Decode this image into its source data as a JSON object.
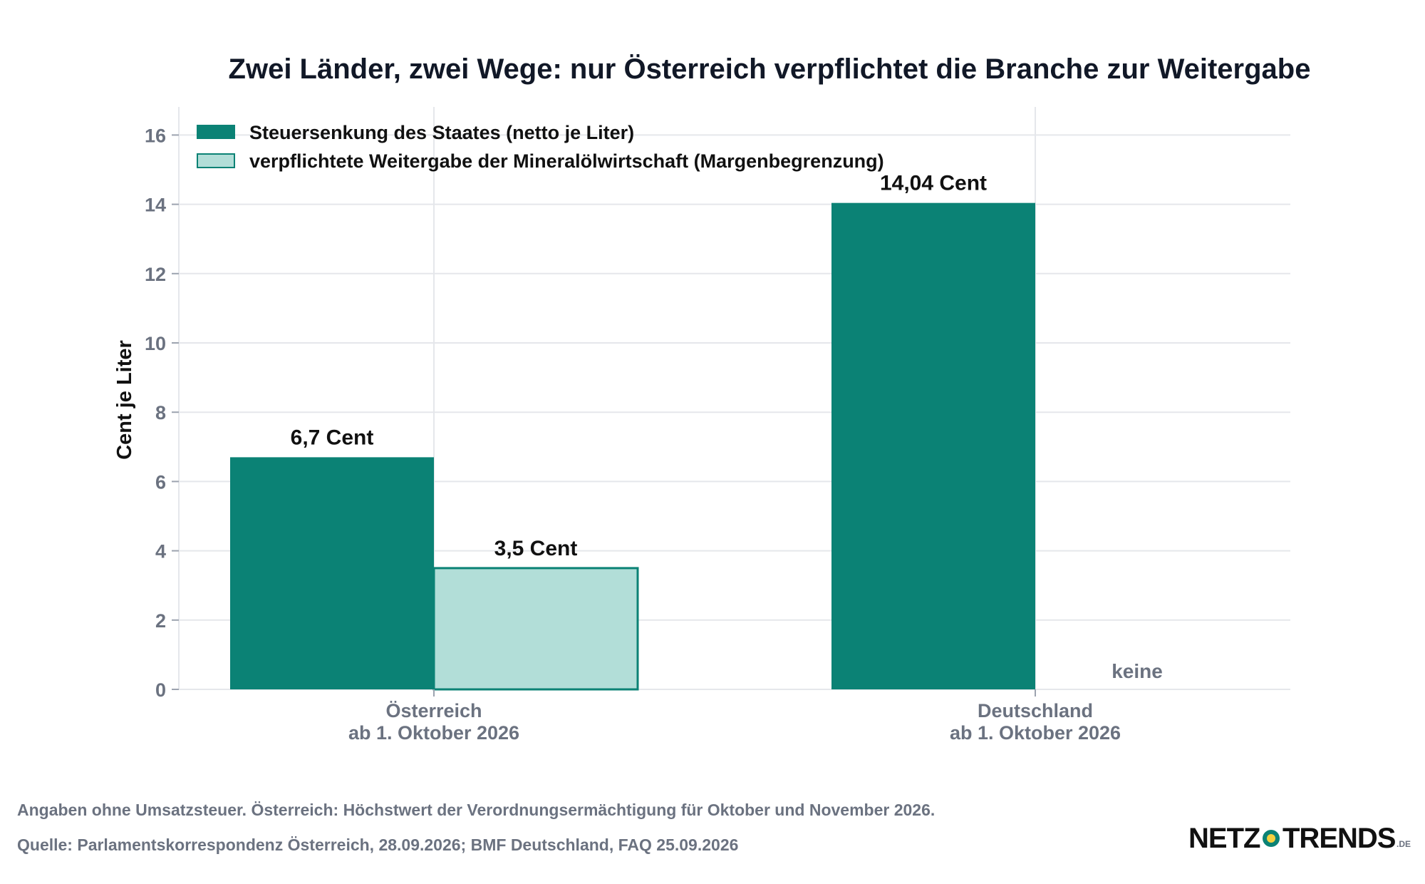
{
  "chart_data": {
    "type": "bar",
    "title": "Zwei Länder, zwei Wege: nur Österreich verpflichtet die Branche zur Weitergabe",
    "ylabel": "Cent je Liter",
    "xlabel": "",
    "ylim": [
      0,
      16.8
    ],
    "yticks": [
      0,
      2,
      4,
      6,
      8,
      10,
      12,
      14,
      16
    ],
    "grid": true,
    "legend_position": "top-left",
    "categories": [
      [
        "Österreich",
        "ab 1. Oktober 2026"
      ],
      [
        "Deutschland",
        "ab 1. Oktober 2026"
      ]
    ],
    "series": [
      {
        "name": "Steuersenkung des Staates (netto je Liter)",
        "values": [
          6.7,
          14.04
        ],
        "labels": [
          "6,7 Cent",
          "14,04 Cent"
        ],
        "color": "#0b8275"
      },
      {
        "name": "verpflichtete Weitergabe der Mineralölwirtschaft (Margenbegrenzung)",
        "values": [
          3.5,
          0
        ],
        "labels": [
          "3,5 Cent",
          "keine"
        ],
        "color": "#b2ded8",
        "stroke": "#0b8275"
      }
    ]
  },
  "footer": {
    "note": "Angaben ohne Umsatzsteuer. Österreich: Höchstwert der Verordnungsermächtigung für Oktober und November 2026.",
    "source": "Quelle: Parlamentskorrespondenz Österreich, 28.09.2026; BMF Deutschland, FAQ 25.09.2026"
  },
  "logo": {
    "left": "NETZ",
    "right": "TRENDS",
    "suffix": ".DE"
  },
  "colors": {
    "grid": "#e5e7eb",
    "axis_text": "#6b7280",
    "logo_dot_outer": "#0b8275",
    "logo_dot_inner": "#f4d03f"
  }
}
